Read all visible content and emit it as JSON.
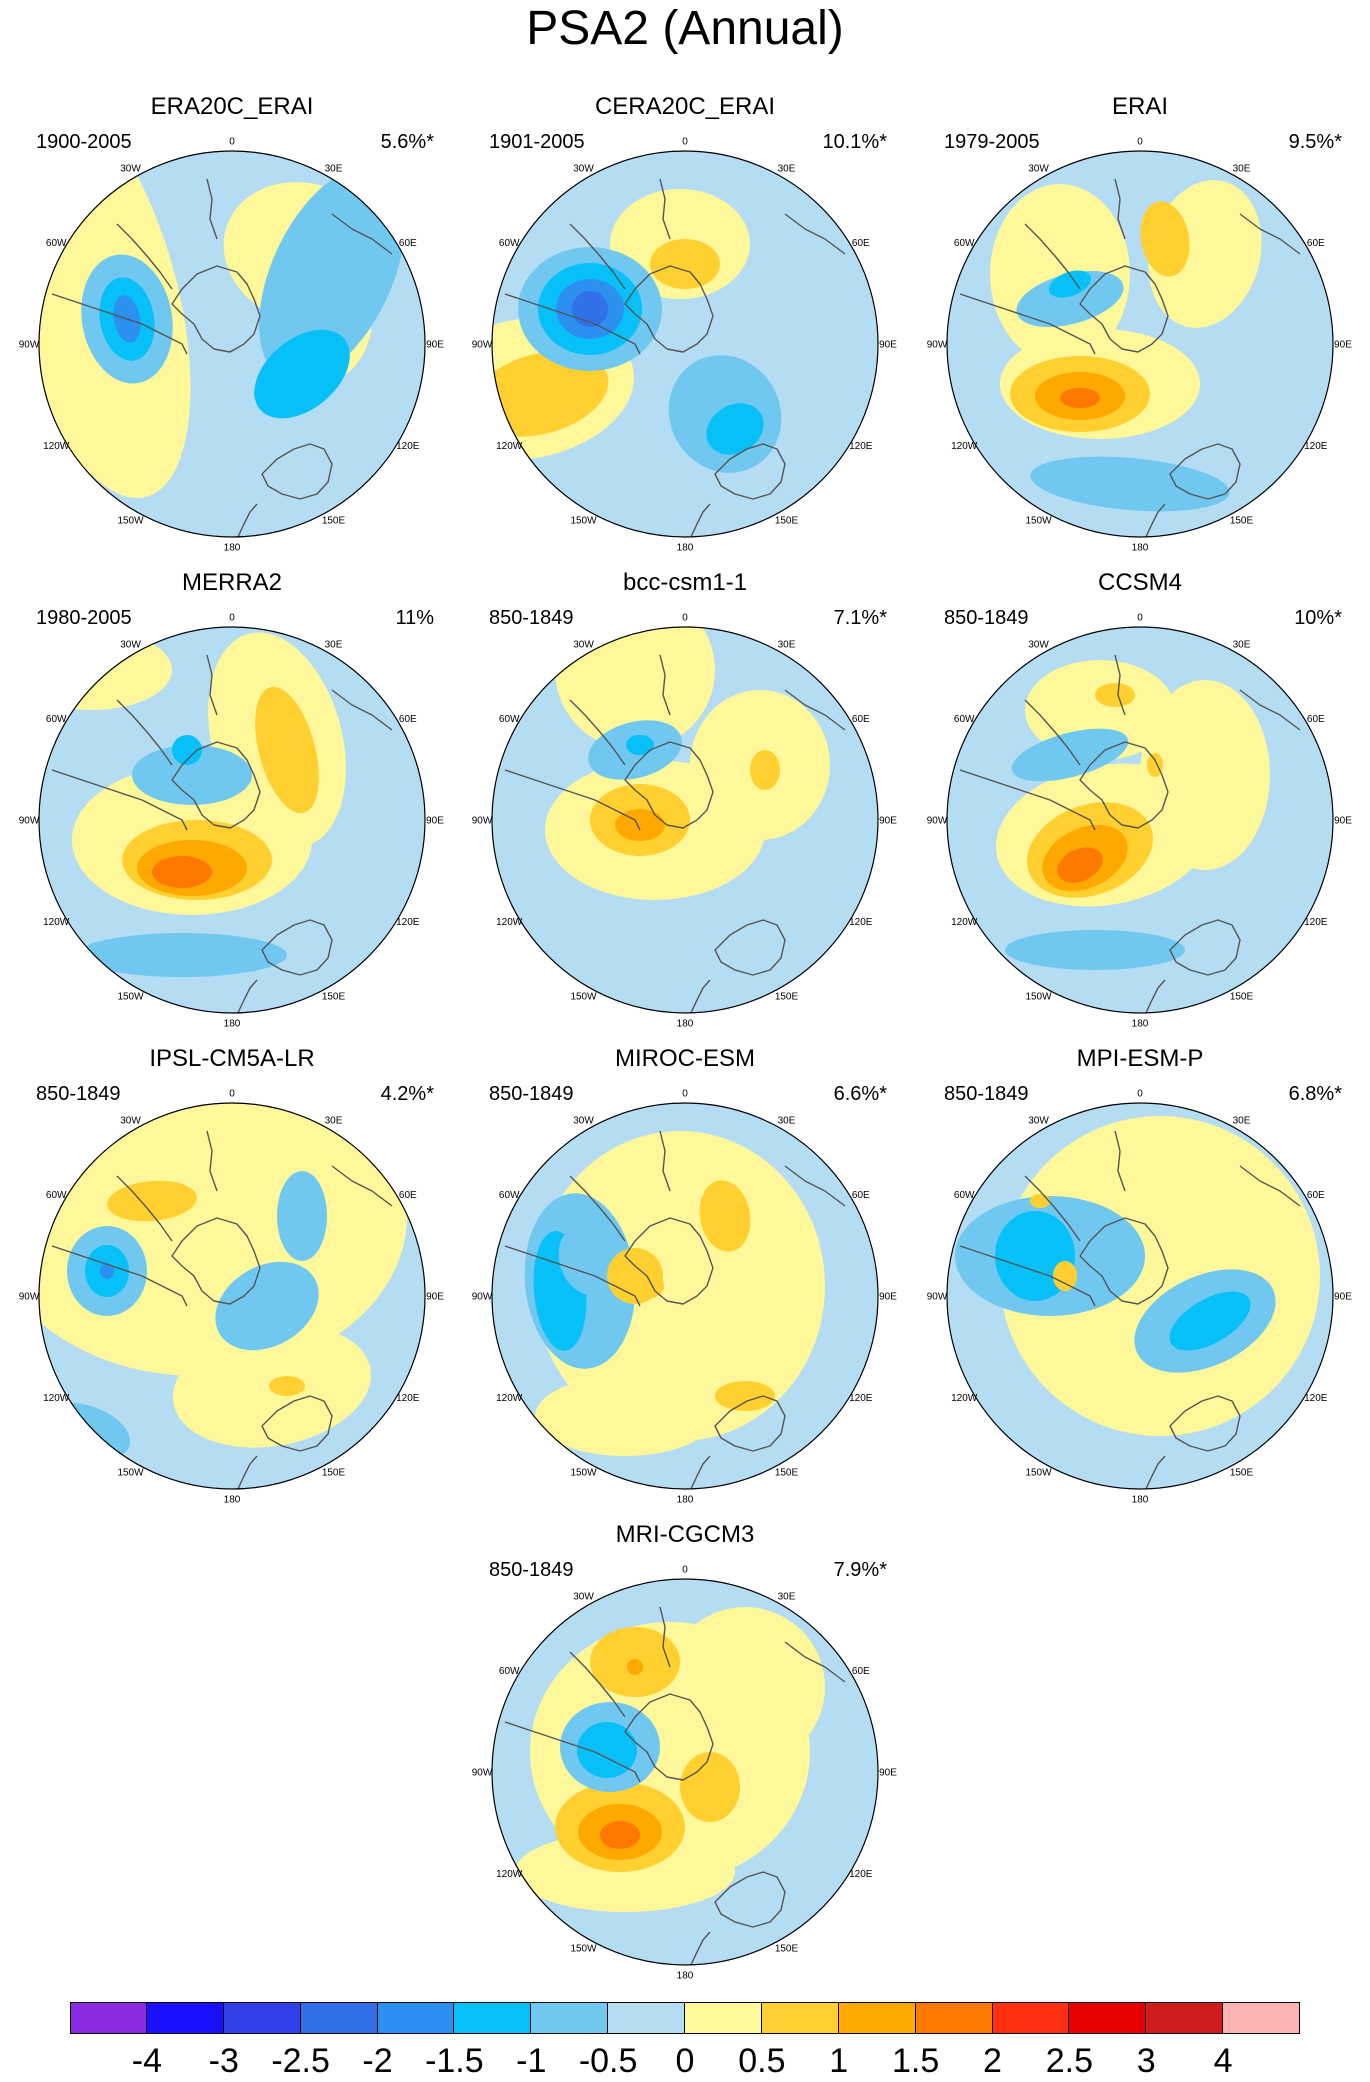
{
  "title": "PSA2 (Annual)",
  "longitude_labels": [
    "0",
    "30E",
    "60E",
    "90E",
    "120E",
    "150E",
    "180",
    "150W",
    "120W",
    "90W",
    "60W",
    "30W"
  ],
  "panels": [
    {
      "name": "ERA20C_ERAI",
      "period": "1900-2005",
      "variance": "5.6%*"
    },
    {
      "name": "CERA20C_ERAI",
      "period": "1901-2005",
      "variance": "10.1%*"
    },
    {
      "name": "ERAI",
      "period": "1979-2005",
      "variance": "9.5%*"
    },
    {
      "name": "MERRA2",
      "period": "1980-2005",
      "variance": "11%"
    },
    {
      "name": "bcc-csm1-1",
      "period": "850-1849",
      "variance": "7.1%*"
    },
    {
      "name": "CCSM4",
      "period": "850-1849",
      "variance": "10%*"
    },
    {
      "name": "IPSL-CM5A-LR",
      "period": "850-1849",
      "variance": "4.2%*"
    },
    {
      "name": "MIROC-ESM",
      "period": "850-1849",
      "variance": "6.6%*"
    },
    {
      "name": "MPI-ESM-P",
      "period": "850-1849",
      "variance": "6.8%*"
    },
    {
      "name": "MRI-CGCM3",
      "period": "850-1849",
      "variance": "7.9%*"
    }
  ],
  "colorbar": {
    "labels": [
      "-4",
      "-3",
      "-2.5",
      "-2",
      "-1.5",
      "-1",
      "-0.5",
      "0",
      "0.5",
      "1",
      "1.5",
      "2",
      "2.5",
      "3",
      "4"
    ],
    "colors": [
      "#8a2be2",
      "#1a10ff",
      "#3040e8",
      "#3070e8",
      "#2b90f0",
      "#08c0f8",
      "#70c8f0",
      "#b4dcf2",
      "#fff89a",
      "#ffd030",
      "#ffa800",
      "#ff7800",
      "#ff3010",
      "#e80000",
      "#d01c1c",
      "#ffb4b4"
    ]
  }
}
